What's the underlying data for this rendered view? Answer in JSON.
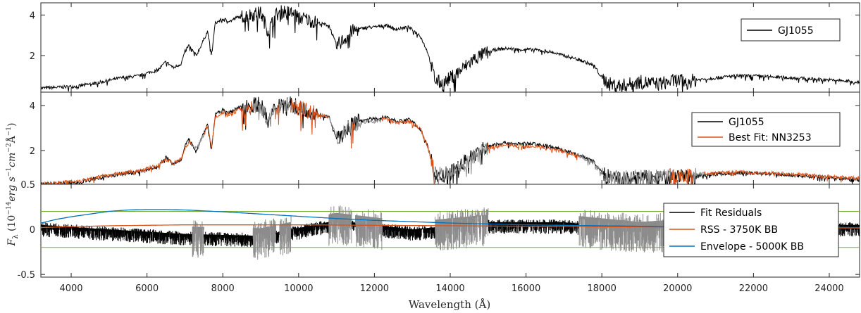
{
  "figure": {
    "xlabel": "Wavelength (Å)",
    "ylabel_parts": {
      "main": "F",
      "sub": "λ",
      "rest": " (10",
      "exp": "−14",
      "unit": "erg s",
      "unit_exp1": "−1",
      "unit2": "cm",
      "unit_exp2": "−2",
      "unit3": "Å",
      "unit_exp3": "−1",
      "close": ")"
    }
  },
  "colors": {
    "observed": "#000000",
    "fit": "#d95319",
    "masked": "#8c8c8c",
    "bb_rss": "#d95319",
    "envelope": "#0072bd",
    "threshold": "#77ac30"
  },
  "chart_data": [
    {
      "type": "line",
      "panel": "top",
      "xlim": [
        3200,
        24800
      ],
      "ylim": [
        0.2,
        4.6
      ],
      "yticks": [
        {
          "v": 2,
          "label": "2"
        },
        {
          "v": 4,
          "label": "4"
        }
      ],
      "legend": {
        "position": "top-right",
        "entries": [
          "GJ1055"
        ]
      },
      "series": [
        {
          "name": "GJ1055",
          "color_key": "observed",
          "x": [
            3200,
            3800,
            4200,
            4800,
            5300,
            5800,
            6100,
            6300,
            6500,
            6700,
            6900,
            7000,
            7100,
            7300,
            7500,
            7600,
            7700,
            7800,
            8000,
            8200,
            8400,
            8700,
            9000,
            9200,
            9400,
            9600,
            9800,
            10000,
            10200,
            10500,
            10800,
            11000,
            11200,
            11400,
            11600,
            11800,
            12000,
            12300,
            12600,
            12900,
            13200,
            13400,
            13600,
            13800,
            14000,
            14300,
            14600,
            14900,
            15200,
            15500,
            15800,
            16200,
            16600,
            17000,
            17400,
            17800,
            18000,
            18200,
            18500,
            19000,
            19500,
            20000,
            20200,
            20500,
            21000,
            21500,
            22000,
            22500,
            23000,
            23500,
            24000,
            24400,
            24800
          ],
          "y": [
            0.4,
            0.45,
            0.5,
            0.7,
            0.9,
            1.0,
            1.2,
            1.3,
            1.7,
            1.4,
            1.6,
            2.2,
            2.5,
            2.0,
            2.8,
            3.2,
            2.0,
            3.6,
            3.8,
            3.7,
            3.9,
            4.0,
            4.1,
            3.2,
            4.0,
            4.2,
            4.1,
            3.9,
            3.8,
            3.6,
            3.5,
            2.5,
            2.8,
            3.2,
            3.3,
            3.4,
            3.4,
            3.5,
            3.3,
            3.4,
            3.0,
            2.2,
            0.8,
            0.6,
            0.9,
            1.3,
            1.8,
            2.1,
            2.3,
            2.35,
            2.3,
            2.3,
            2.2,
            2.0,
            1.8,
            1.5,
            0.9,
            0.6,
            0.5,
            0.7,
            0.6,
            0.8,
            0.7,
            0.8,
            0.9,
            1.0,
            1.0,
            0.95,
            0.9,
            0.85,
            0.8,
            0.75,
            0.7
          ]
        }
      ]
    },
    {
      "type": "line",
      "panel": "middle",
      "xlim": [
        3200,
        24800
      ],
      "ylim": [
        0.5,
        4.6
      ],
      "yticks": [
        {
          "v": 2,
          "label": "2"
        },
        {
          "v": 4,
          "label": "4"
        }
      ],
      "ylabel": "F_λ (10^-14 erg s^-1 cm^-2 Å^-1)",
      "legend": {
        "position": "right",
        "entries": [
          "GJ1055",
          "Best Fit: NN3253"
        ]
      },
      "masked_regions": [
        [
          7200,
          7500
        ],
        [
          8800,
          9400
        ],
        [
          9500,
          9800
        ],
        [
          10800,
          11400
        ],
        [
          11500,
          12200
        ],
        [
          13600,
          15000
        ],
        [
          17400,
          19800
        ],
        [
          20400,
          20700
        ]
      ],
      "series": [
        {
          "name": "GJ1055",
          "color_key": "observed",
          "x": [
            3200,
            3800,
            4200,
            4800,
            5300,
            5800,
            6100,
            6300,
            6500,
            6700,
            6900,
            7000,
            7100,
            7300,
            7500,
            7600,
            7700,
            7800,
            8000,
            8200,
            8400,
            8700,
            9000,
            9200,
            9400,
            9600,
            9800,
            10000,
            10200,
            10500,
            10800,
            11000,
            11200,
            11400,
            11600,
            11800,
            12000,
            12300,
            12600,
            12900,
            13200,
            13400,
            13600,
            13800,
            14000,
            14300,
            14600,
            14900,
            15200,
            15500,
            15800,
            16200,
            16600,
            17000,
            17400,
            17800,
            18000,
            18200,
            18500,
            19000,
            19500,
            20000,
            20200,
            20500,
            21000,
            21500,
            22000,
            22500,
            23000,
            23500,
            24000,
            24400,
            24800
          ],
          "y": [
            0.5,
            0.55,
            0.6,
            0.8,
            0.95,
            1.05,
            1.2,
            1.3,
            1.7,
            1.4,
            1.6,
            2.2,
            2.5,
            2.0,
            2.8,
            3.2,
            2.0,
            3.6,
            3.8,
            3.7,
            3.9,
            4.0,
            4.1,
            3.2,
            4.0,
            4.2,
            4.1,
            3.9,
            3.8,
            3.6,
            3.5,
            2.5,
            2.8,
            3.2,
            3.3,
            3.4,
            3.4,
            3.5,
            3.3,
            3.4,
            3.0,
            2.2,
            0.9,
            0.8,
            1.0,
            1.4,
            1.8,
            2.1,
            2.3,
            2.35,
            2.3,
            2.3,
            2.2,
            2.0,
            1.8,
            1.5,
            1.0,
            0.8,
            0.7,
            0.8,
            0.75,
            0.9,
            0.8,
            0.9,
            0.95,
            1.0,
            1.0,
            0.95,
            0.9,
            0.85,
            0.8,
            0.75,
            0.7
          ]
        },
        {
          "name": "Best Fit: NN3253",
          "color_key": "fit",
          "x": [
            3200,
            3800,
            4200,
            4800,
            5300,
            5800,
            6100,
            6300,
            6500,
            6700,
            6900,
            7000,
            7100,
            7300,
            7500,
            7600,
            7700,
            7800,
            8000,
            8200,
            8400,
            8700,
            9000,
            9200,
            9400,
            9600,
            9800,
            10000,
            10200,
            10500,
            10800,
            11000,
            11200,
            11400,
            11600,
            11800,
            12000,
            12300,
            12600,
            12900,
            13200,
            13400,
            13600,
            13800,
            14000,
            14300,
            14600,
            14900,
            15200,
            15500,
            15800,
            16200,
            16600,
            17000,
            17400,
            17800,
            18000,
            18200,
            18500,
            19000,
            19500,
            20000,
            20200,
            20500,
            21000,
            21500,
            22000,
            22500,
            23000,
            23500,
            24000,
            24400,
            24800
          ],
          "y": [
            0.5,
            0.6,
            0.65,
            0.85,
            1.0,
            1.1,
            1.25,
            1.35,
            1.6,
            1.45,
            1.65,
            2.1,
            2.4,
            2.1,
            2.7,
            3.1,
            2.1,
            3.5,
            3.7,
            3.6,
            3.8,
            3.9,
            4.0,
            3.3,
            3.9,
            4.1,
            4.0,
            3.9,
            3.8,
            3.6,
            3.5,
            2.6,
            2.8,
            3.1,
            3.2,
            3.3,
            3.3,
            3.4,
            3.2,
            3.3,
            3.0,
            2.2,
            1.0,
            0.9,
            1.0,
            1.3,
            1.7,
            2.0,
            2.2,
            2.25,
            2.2,
            2.2,
            2.1,
            1.95,
            1.75,
            1.45,
            1.0,
            0.8,
            0.75,
            0.85,
            0.8,
            0.9,
            0.85,
            0.95,
            1.0,
            1.05,
            1.0,
            1.0,
            0.95,
            0.9,
            0.85,
            0.8,
            0.75
          ]
        }
      ]
    },
    {
      "type": "line",
      "panel": "bottom",
      "xlim": [
        3200,
        24800
      ],
      "ylim": [
        -0.53,
        0.5
      ],
      "yticks": [
        {
          "v": -0.5,
          "label": "-0.5"
        },
        {
          "v": 0,
          "label": "0"
        },
        {
          "v": 0.5,
          "label": "0.5"
        }
      ],
      "xticks": [
        4000,
        6000,
        8000,
        10000,
        12000,
        14000,
        16000,
        18000,
        20000,
        22000,
        24000
      ],
      "xlabel": "Wavelength (Å)",
      "legend": {
        "position": "right",
        "entries": [
          "Fit Residuals",
          "RSS - 3750K BB",
          "Envelope - 5000K BB"
        ]
      },
      "thresholds": [
        0.2,
        -0.2
      ],
      "series": [
        {
          "name": "Fit Residuals",
          "color_key": "observed",
          "x": [
            3200,
            5000,
            7000,
            9000,
            11000,
            13000,
            15000,
            17000,
            19000,
            21000,
            23000,
            24800
          ],
          "y": [
            0.0,
            -0.05,
            -0.1,
            -0.12,
            0.05,
            -0.05,
            0.03,
            0.03,
            -0.05,
            0.0,
            0.0,
            0.0
          ]
        },
        {
          "name": "RSS - 3750K BB",
          "color_key": "bb_rss",
          "x": [
            3200,
            4000,
            5000,
            6000,
            7000,
            8000,
            9000,
            10000,
            11000,
            12000,
            14000,
            16000,
            18000,
            20000,
            22000,
            24800
          ],
          "y": [
            0.02,
            0.03,
            0.04,
            0.045,
            0.05,
            0.05,
            0.05,
            0.05,
            0.048,
            0.045,
            0.04,
            0.035,
            0.03,
            0.025,
            0.02,
            0.015
          ]
        },
        {
          "name": "Envelope - 5000K BB",
          "color_key": "envelope",
          "x": [
            3200,
            3600,
            4000,
            4500,
            5000,
            5500,
            6000,
            6500,
            7000,
            7500,
            8000,
            9000,
            10000,
            11000,
            12000,
            13000,
            14000,
            15000,
            16000,
            17000,
            18000,
            20000,
            22000,
            24800
          ],
          "y": [
            0.07,
            0.11,
            0.14,
            0.17,
            0.2,
            0.215,
            0.22,
            0.22,
            0.215,
            0.205,
            0.195,
            0.17,
            0.145,
            0.12,
            0.1,
            0.085,
            0.07,
            0.06,
            0.05,
            0.045,
            0.04,
            0.03,
            0.025,
            0.02
          ]
        }
      ]
    }
  ]
}
